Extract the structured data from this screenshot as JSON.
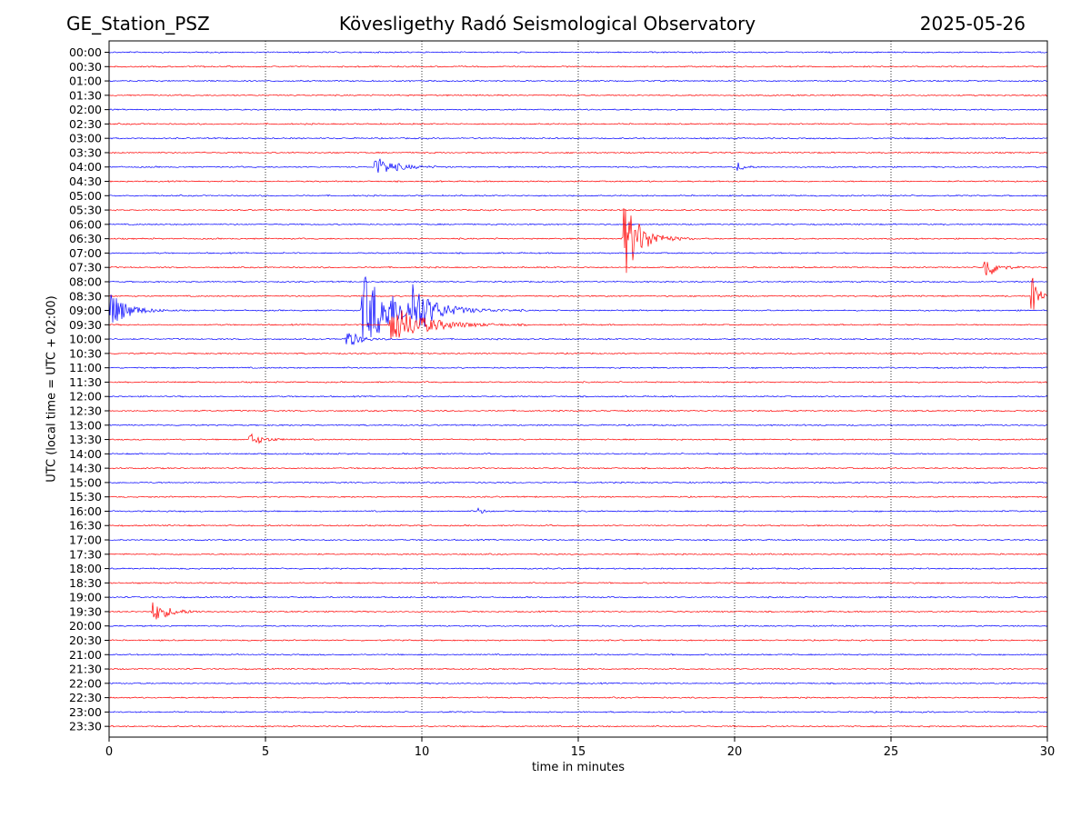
{
  "header": {
    "left": "GE_Station_PSZ",
    "center": "Kövesligethy Radó Seismological Observatory",
    "right": "2025-05-26"
  },
  "chart_data": {
    "type": "line",
    "xlabel": "time in minutes",
    "ylabel": "UTC (local time = UTC + 02:00)",
    "xlim": [
      0,
      30
    ],
    "xticks": [
      0,
      5,
      10,
      15,
      20,
      25,
      30
    ],
    "grid": "vertical dotted at x ticks",
    "row_colors": [
      "#0000ff",
      "#ff0000"
    ],
    "rows": [
      "00:00",
      "00:30",
      "01:00",
      "01:30",
      "02:00",
      "02:30",
      "03:00",
      "03:30",
      "04:00",
      "04:30",
      "05:00",
      "05:30",
      "06:00",
      "06:30",
      "07:00",
      "07:30",
      "08:00",
      "08:30",
      "09:00",
      "09:30",
      "10:00",
      "10:30",
      "11:00",
      "11:30",
      "12:00",
      "12:30",
      "13:00",
      "13:30",
      "14:00",
      "14:30",
      "15:00",
      "15:30",
      "16:00",
      "16:30",
      "17:00",
      "17:30",
      "18:00",
      "18:30",
      "19:00",
      "19:30",
      "20:00",
      "20:30",
      "21:00",
      "21:30",
      "22:00",
      "22:30",
      "23:00",
      "23:30"
    ],
    "events": [
      {
        "row": "04:00",
        "start_min": 8.5,
        "duration_min": 1.8,
        "amplitude": 0.25
      },
      {
        "row": "04:00",
        "start_min": 20.1,
        "duration_min": 0.6,
        "amplitude": 0.12
      },
      {
        "row": "06:30",
        "start_min": 16.45,
        "duration_min": 1.5,
        "amplitude": 1.0
      },
      {
        "row": "07:30",
        "start_min": 28.0,
        "duration_min": 0.9,
        "amplitude": 0.35
      },
      {
        "row": "08:30",
        "start_min": 29.5,
        "duration_min": 0.5,
        "amplitude": 0.75
      },
      {
        "row": "09:00",
        "start_min": 0.0,
        "duration_min": 1.5,
        "amplitude": 0.5
      },
      {
        "row": "09:00",
        "start_min": 8.1,
        "duration_min": 3.5,
        "amplitude": 0.9
      },
      {
        "row": "09:00",
        "start_min": 9.7,
        "duration_min": 1.2,
        "amplitude": 0.6
      },
      {
        "row": "09:30",
        "start_min": 9.0,
        "duration_min": 3.0,
        "amplitude": 0.5
      },
      {
        "row": "10:00",
        "start_min": 7.6,
        "duration_min": 1.0,
        "amplitude": 0.25
      },
      {
        "row": "13:30",
        "start_min": 4.5,
        "duration_min": 1.2,
        "amplitude": 0.15
      },
      {
        "row": "16:00",
        "start_min": 11.8,
        "duration_min": 0.5,
        "amplitude": 0.08
      },
      {
        "row": "19:30",
        "start_min": 1.4,
        "duration_min": 1.5,
        "amplitude": 0.25
      }
    ]
  }
}
